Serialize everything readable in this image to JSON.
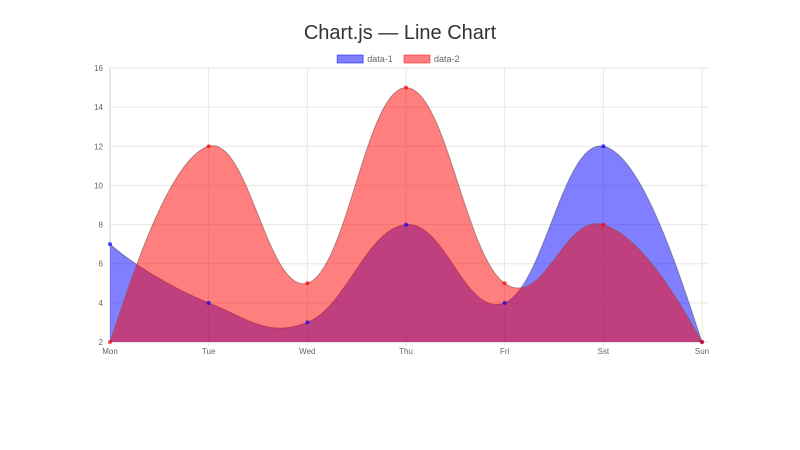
{
  "chart_data": {
    "type": "area",
    "title": "Chart.js — Line Chart",
    "xlabel": "",
    "ylabel": "",
    "categories": [
      "Mon",
      "Tue",
      "Wed",
      "Thu",
      "Fri",
      "Sst",
      "Sun"
    ],
    "ylim": [
      2,
      16
    ],
    "yticks": [
      2,
      4,
      6,
      8,
      10,
      12,
      14,
      16
    ],
    "grid": true,
    "legend_position": "top",
    "curve": "smooth",
    "series": [
      {
        "name": "data-1",
        "values": [
          7,
          4,
          3,
          8,
          4,
          12,
          2
        ],
        "fill": "#0000ff",
        "fill_opacity": 0.5,
        "stroke": "#555577"
      },
      {
        "name": "data-2",
        "values": [
          2,
          12,
          5,
          15,
          5,
          8,
          2
        ],
        "fill": "#ff0000",
        "fill_opacity": 0.5,
        "stroke": "#885555"
      }
    ]
  }
}
